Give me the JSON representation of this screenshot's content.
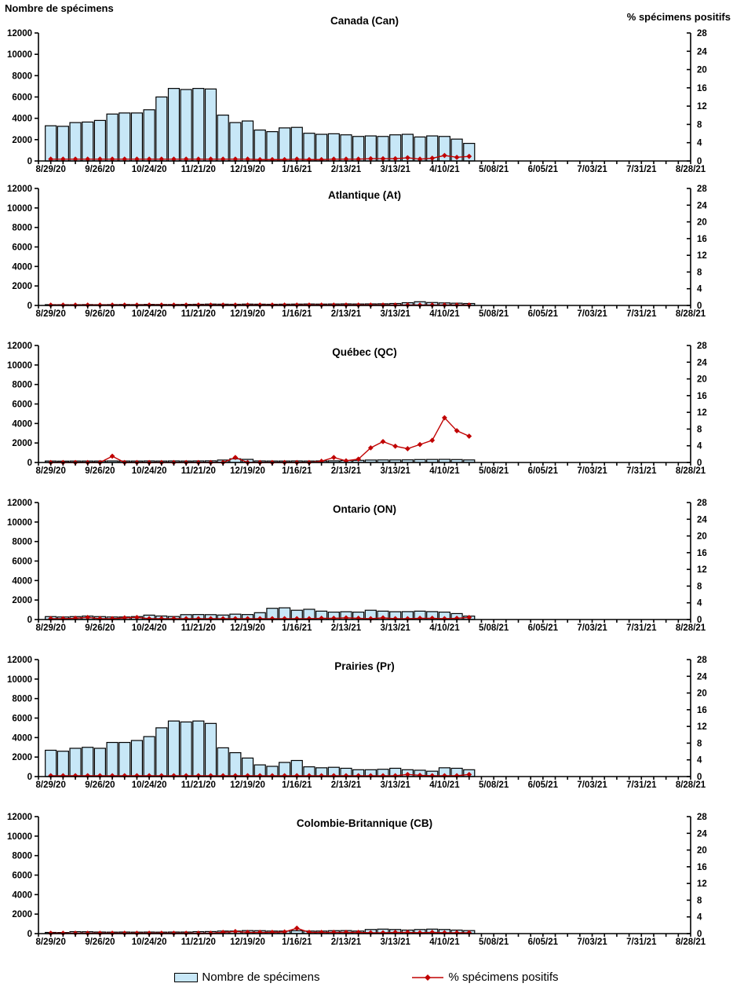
{
  "legend": {
    "bar_label": "Nombre de spécimens",
    "line_label": "% spécimens positifs"
  },
  "colors": {
    "bar_fill": "#C7E7F7",
    "bar_stroke": "#000000",
    "line": "#C00000",
    "axis": "#000000",
    "text": "#000000"
  },
  "chart_data": {
    "type": "combo-bar-line",
    "left_axis": {
      "label": "Nombre de spécimens",
      "lim": [
        0,
        12000
      ],
      "tick_step": 2000,
      "ticks": [
        0,
        2000,
        4000,
        6000,
        8000,
        10000,
        12000
      ]
    },
    "right_axis": {
      "label": "% spécimens positifs",
      "lim": [
        0,
        28
      ],
      "tick_step": 4,
      "ticks": [
        0,
        4,
        8,
        12,
        16,
        20,
        24,
        28
      ]
    },
    "x_axis": {
      "weeks_total": 53,
      "weeks_per_major_label": 4,
      "major_labels": [
        "8/29/20",
        "9/26/20",
        "10/24/20",
        "11/21/20",
        "12/19/20",
        "1/16/21",
        "2/13/21",
        "3/13/21",
        "4/10/21",
        "5/08/21",
        "6/05/21",
        "7/03/21",
        "7/31/21",
        "8/28/21"
      ]
    },
    "categories": [
      "8/29/20",
      "9/5/20",
      "9/12/20",
      "9/19/20",
      "9/26/20",
      "10/3/20",
      "10/10/20",
      "10/17/20",
      "10/24/20",
      "10/31/20",
      "11/7/20",
      "11/14/20",
      "11/21/20",
      "11/28/20",
      "12/5/20",
      "12/12/20",
      "12/19/20",
      "12/26/20",
      "1/2/21",
      "1/9/21",
      "1/16/21",
      "1/23/21",
      "1/30/21",
      "2/6/21",
      "2/13/21",
      "2/20/21",
      "2/27/21",
      "3/6/21",
      "3/13/21",
      "3/20/21",
      "3/27/21",
      "4/3/21",
      "4/10/21",
      "4/17/21",
      "4/24/21"
    ],
    "legend_position": "bottom",
    "panels": [
      {
        "title": "Canada (Can)",
        "series": [
          {
            "name": "Nombre de spécimens",
            "type": "bar",
            "axis": "left",
            "values": [
              3300,
              3250,
              3600,
              3650,
              3800,
              4400,
              4500,
              4500,
              4800,
              6000,
              6800,
              6700,
              6800,
              6750,
              4300,
              3600,
              3750,
              2900,
              2750,
              3100,
              3150,
              2600,
              2500,
              2550,
              2450,
              2300,
              2350,
              2300,
              2450,
              2500,
              2250,
              2350,
              2300,
              2050,
              1650
            ]
          },
          {
            "name": "% spécimens positifs",
            "type": "line",
            "axis": "right",
            "values": [
              0.4,
              0.4,
              0.4,
              0.4,
              0.4,
              0.4,
              0.4,
              0.4,
              0.4,
              0.4,
              0.4,
              0.4,
              0.4,
              0.4,
              0.4,
              0.4,
              0.4,
              0.3,
              0.3,
              0.3,
              0.4,
              0.3,
              0.3,
              0.4,
              0.4,
              0.4,
              0.5,
              0.5,
              0.5,
              0.7,
              0.4,
              0.6,
              1.2,
              0.8,
              1.0
            ]
          }
        ]
      },
      {
        "title": "Atlantique (At)",
        "series": [
          {
            "name": "Nombre de spécimens",
            "type": "bar",
            "axis": "left",
            "values": [
              80,
              70,
              80,
              90,
              80,
              90,
              100,
              90,
              110,
              100,
              100,
              110,
              120,
              140,
              130,
              120,
              140,
              130,
              120,
              130,
              140,
              150,
              140,
              150,
              160,
              150,
              160,
              170,
              200,
              280,
              380,
              300,
              260,
              230,
              200
            ]
          },
          {
            "name": "% spécimens positifs",
            "type": "line",
            "axis": "right",
            "values": [
              0.1,
              0.1,
              0.1,
              0.1,
              0.1,
              0.1,
              0.1,
              0.1,
              0.1,
              0.1,
              0.1,
              0.1,
              0.1,
              0.1,
              0.1,
              0.1,
              0.1,
              0.1,
              0.1,
              0.1,
              0.1,
              0.1,
              0.1,
              0.1,
              0.1,
              0.1,
              0.1,
              0.1,
              0.1,
              0.1,
              0.1,
              0.1,
              0.1,
              0.1,
              0.1
            ]
          }
        ]
      },
      {
        "title": "Québec (QC)",
        "series": [
          {
            "name": "Nombre de spécimens",
            "type": "bar",
            "axis": "left",
            "values": [
              150,
              140,
              150,
              150,
              150,
              160,
              150,
              150,
              160,
              150,
              160,
              150,
              160,
              170,
              250,
              380,
              320,
              160,
              150,
              150,
              160,
              150,
              160,
              170,
              200,
              220,
              250,
              260,
              260,
              270,
              300,
              310,
              320,
              300,
              260
            ]
          },
          {
            "name": "% spécimens positifs",
            "type": "line",
            "axis": "right",
            "values": [
              0,
              0,
              0,
              0,
              0,
              1.5,
              0,
              0,
              0,
              0,
              0,
              0,
              0,
              0,
              0,
              1.2,
              0,
              0,
              0,
              0,
              0,
              0,
              0.3,
              1.2,
              0.4,
              0.8,
              3.5,
              5.0,
              3.9,
              3.3,
              4.3,
              5.3,
              10.7,
              7.6,
              6.3
            ]
          }
        ]
      },
      {
        "title": "Ontario (ON)",
        "series": [
          {
            "name": "Nombre de spécimens",
            "type": "bar",
            "axis": "left",
            "values": [
              300,
              260,
              300,
              350,
              300,
              260,
              260,
              300,
              450,
              360,
              310,
              500,
              510,
              500,
              460,
              550,
              510,
              700,
              1150,
              1200,
              950,
              1050,
              860,
              760,
              800,
              760,
              950,
              860,
              800,
              810,
              860,
              810,
              760,
              610,
              350
            ]
          },
          {
            "name": "% spécimens positifs",
            "type": "line",
            "axis": "right",
            "values": [
              0.2,
              0.2,
              0.3,
              0.5,
              0.2,
              0.2,
              0.4,
              0.5,
              0.2,
              0.2,
              0.2,
              0.2,
              0.2,
              0.2,
              0.2,
              0.2,
              0.2,
              0.2,
              0.2,
              0.2,
              0.2,
              0.2,
              0.3,
              0.3,
              0.4,
              0.3,
              0.2,
              0.4,
              0.2,
              0.2,
              0.3,
              0.3,
              0.2,
              0.3,
              0.5
            ]
          }
        ]
      },
      {
        "title": "Prairies (Pr)",
        "series": [
          {
            "name": "Nombre de spécimens",
            "type": "bar",
            "axis": "left",
            "values": [
              2700,
              2600,
              2900,
              3000,
              2900,
              3500,
              3500,
              3700,
              4100,
              5000,
              5700,
              5600,
              5700,
              5450,
              2950,
              2450,
              1900,
              1200,
              1050,
              1450,
              1650,
              1000,
              900,
              950,
              850,
              700,
              700,
              750,
              850,
              700,
              650,
              550,
              900,
              850,
              700
            ]
          },
          {
            "name": "% spécimens positifs",
            "type": "line",
            "axis": "right",
            "values": [
              0.2,
              0.2,
              0.2,
              0.2,
              0.2,
              0.2,
              0.2,
              0.2,
              0.2,
              0.2,
              0.2,
              0.2,
              0.2,
              0.2,
              0.2,
              0.2,
              0.2,
              0.2,
              0.2,
              0.2,
              0.2,
              0.2,
              0.2,
              0.2,
              0.2,
              0.2,
              0.2,
              0.2,
              0.2,
              0.5,
              0.3,
              0.2,
              0.2,
              0.2,
              0.5
            ]
          }
        ]
      },
      {
        "title": "Colombie-Britannique (CB)",
        "series": [
          {
            "name": "Nombre de spécimens",
            "type": "bar",
            "axis": "left",
            "values": [
              120,
              110,
              200,
              190,
              160,
              150,
              160,
              150,
              160,
              150,
              160,
              160,
              200,
              210,
              260,
              260,
              310,
              300,
              260,
              260,
              300,
              260,
              260,
              300,
              310,
              260,
              420,
              460,
              420,
              360,
              420,
              460,
              420,
              360,
              310
            ]
          },
          {
            "name": "% spécimens positifs",
            "type": "line",
            "axis": "right",
            "values": [
              0.1,
              0.1,
              0.1,
              0.1,
              0.1,
              0.1,
              0.1,
              0.1,
              0.1,
              0.1,
              0.1,
              0.1,
              0.1,
              0.1,
              0.3,
              0.5,
              0.3,
              0.3,
              0.3,
              0.4,
              1.3,
              0.3,
              0.3,
              0.3,
              0.3,
              0.3,
              0.2,
              0.2,
              0.3,
              0.3,
              0.2,
              0.3,
              0.2,
              0.2,
              0.2
            ]
          }
        ]
      }
    ]
  }
}
